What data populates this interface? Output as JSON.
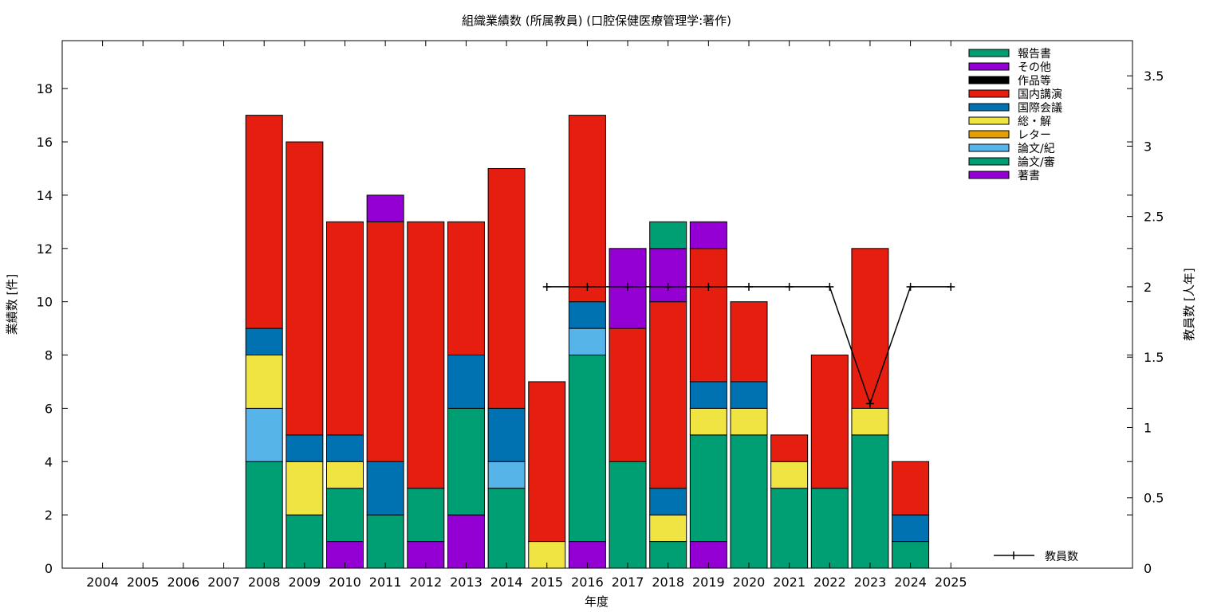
{
  "chart_data": {
    "type": "bar",
    "title": "組織業績数 (所属教員) (口腔保健医療管理学:著作)",
    "xlabel": "年度",
    "ylabel": "業績数 [件]",
    "y2label": "教員数 [人年]",
    "ylim": [
      0,
      19.8
    ],
    "y2lim": [
      0,
      3.75
    ],
    "yticks": [
      "0",
      "2",
      "4",
      "6",
      "8",
      "10",
      "12",
      "14",
      "16",
      "18"
    ],
    "y2ticks": [
      "0",
      "0.5",
      "1",
      "1.5",
      "2",
      "2.5",
      "3",
      "3.5"
    ],
    "categories": [
      "2004",
      "2005",
      "2006",
      "2007",
      "2008",
      "2009",
      "2010",
      "2011",
      "2012",
      "2013",
      "2014",
      "2015",
      "2016",
      "2017",
      "2018",
      "2019",
      "2020",
      "2021",
      "2022",
      "2023",
      "2024",
      "2025"
    ],
    "stack_order_bottom_to_top": [
      "著書",
      "論文/審",
      "論文/紀",
      "レター",
      "総・解",
      "国際会議",
      "国内講演",
      "作品等",
      "その他",
      "報告書"
    ],
    "series": [
      {
        "name": "報告書",
        "color": "#009e73",
        "values": [
          0,
          0,
          0,
          0,
          0,
          0,
          0,
          0,
          0,
          0,
          0,
          0,
          0,
          0,
          1,
          0,
          0,
          0,
          0,
          0,
          0,
          0
        ]
      },
      {
        "name": "その他",
        "color": "#9400d3",
        "values": [
          0,
          0,
          0,
          0,
          0,
          0,
          0,
          1,
          0,
          0,
          0,
          0,
          0,
          3,
          2,
          1,
          0,
          0,
          0,
          0,
          0,
          0
        ]
      },
      {
        "name": "作品等",
        "color": "#000000",
        "values": [
          0,
          0,
          0,
          0,
          0,
          0,
          0,
          0,
          0,
          0,
          0,
          0,
          0,
          0,
          0,
          0,
          0,
          0,
          0,
          0,
          0,
          0
        ]
      },
      {
        "name": "国内講演",
        "color": "#e51e10",
        "values": [
          0,
          0,
          0,
          0,
          8,
          11,
          8,
          9,
          10,
          5,
          9,
          6,
          7,
          5,
          7,
          5,
          3,
          1,
          5,
          6,
          2,
          0
        ]
      },
      {
        "name": "国際会議",
        "color": "#0072b2",
        "values": [
          0,
          0,
          0,
          0,
          1,
          1,
          1,
          2,
          0,
          2,
          2,
          0,
          1,
          0,
          1,
          1,
          1,
          0,
          0,
          0,
          1,
          0
        ]
      },
      {
        "name": "総・解",
        "color": "#f0e442",
        "values": [
          0,
          0,
          0,
          0,
          2,
          2,
          1,
          0,
          0,
          0,
          0,
          1,
          0,
          0,
          1,
          1,
          1,
          1,
          0,
          1,
          0,
          0
        ]
      },
      {
        "name": "レター",
        "color": "#e69f00",
        "values": [
          0,
          0,
          0,
          0,
          0,
          0,
          0,
          0,
          0,
          0,
          0,
          0,
          0,
          0,
          0,
          0,
          0,
          0,
          0,
          0,
          0,
          0
        ]
      },
      {
        "name": "論文/紀",
        "color": "#56b4e9",
        "values": [
          0,
          0,
          0,
          0,
          2,
          0,
          0,
          0,
          0,
          0,
          1,
          0,
          1,
          0,
          0,
          0,
          0,
          0,
          0,
          0,
          0,
          0
        ]
      },
      {
        "name": "論文/審",
        "color": "#009e73",
        "values": [
          0,
          0,
          0,
          0,
          4,
          2,
          2,
          2,
          2,
          4,
          3,
          0,
          7,
          4,
          1,
          4,
          5,
          3,
          3,
          5,
          1,
          0
        ]
      },
      {
        "name": "著書",
        "color": "#9400d3",
        "values": [
          0,
          0,
          0,
          0,
          0,
          0,
          1,
          0,
          1,
          2,
          0,
          0,
          1,
          0,
          0,
          1,
          0,
          0,
          0,
          0,
          0,
          0
        ]
      }
    ],
    "line_series": {
      "name": "教員数",
      "axis": "y2",
      "color": "#000000",
      "x": [
        "2015",
        "2016",
        "2017",
        "2018",
        "2019",
        "2020",
        "2021",
        "2022",
        "2023",
        "2024",
        "2025"
      ],
      "values": [
        2,
        2,
        2,
        2,
        2,
        2,
        2,
        2,
        1.17,
        2,
        2
      ]
    },
    "legend_position": "top-right",
    "line_legend_position": "bottom-right"
  }
}
